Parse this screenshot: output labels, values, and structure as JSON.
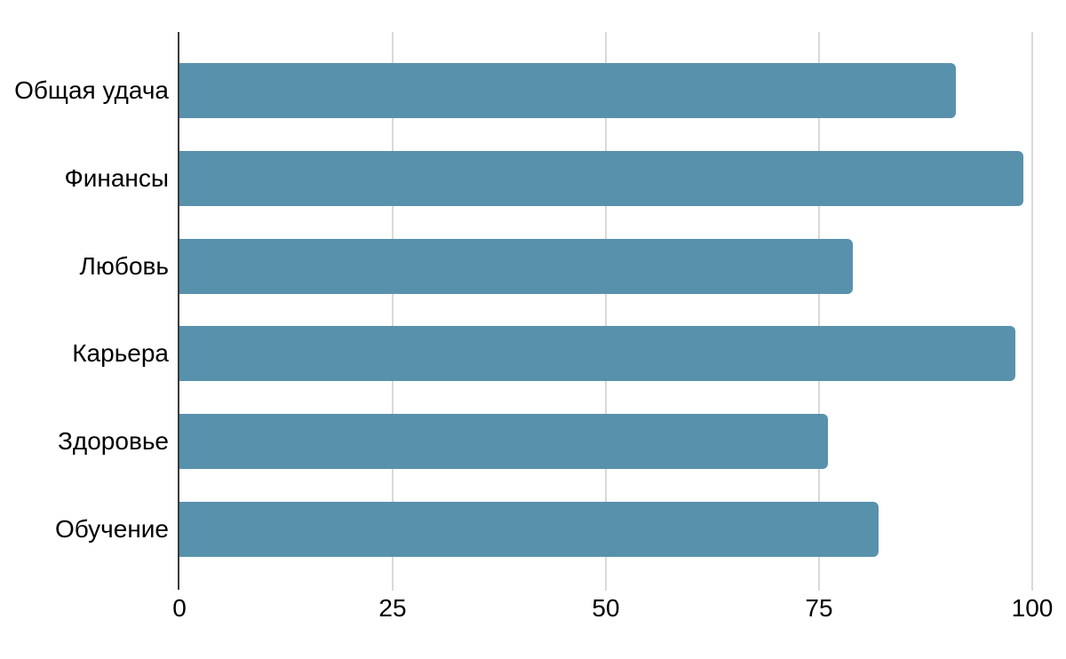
{
  "chart_data": {
    "type": "bar",
    "orientation": "horizontal",
    "title": "",
    "xlabel": "",
    "ylabel": "",
    "categories": [
      "Общая удача",
      "Финансы",
      "Любовь",
      "Карьера",
      "Здоровье",
      "Обучение"
    ],
    "values": [
      91,
      99,
      79,
      98,
      76,
      82
    ],
    "x_ticks": [
      0,
      25,
      50,
      75,
      100
    ],
    "xlim": [
      0,
      100
    ],
    "grid": true,
    "legend_position": "none",
    "colors": {
      "bar": "#5891ac",
      "gridline": "#d9d9d9",
      "axis_line": "#3a3a3a",
      "label_text": "#000000",
      "background": "#ffffff"
    }
  }
}
